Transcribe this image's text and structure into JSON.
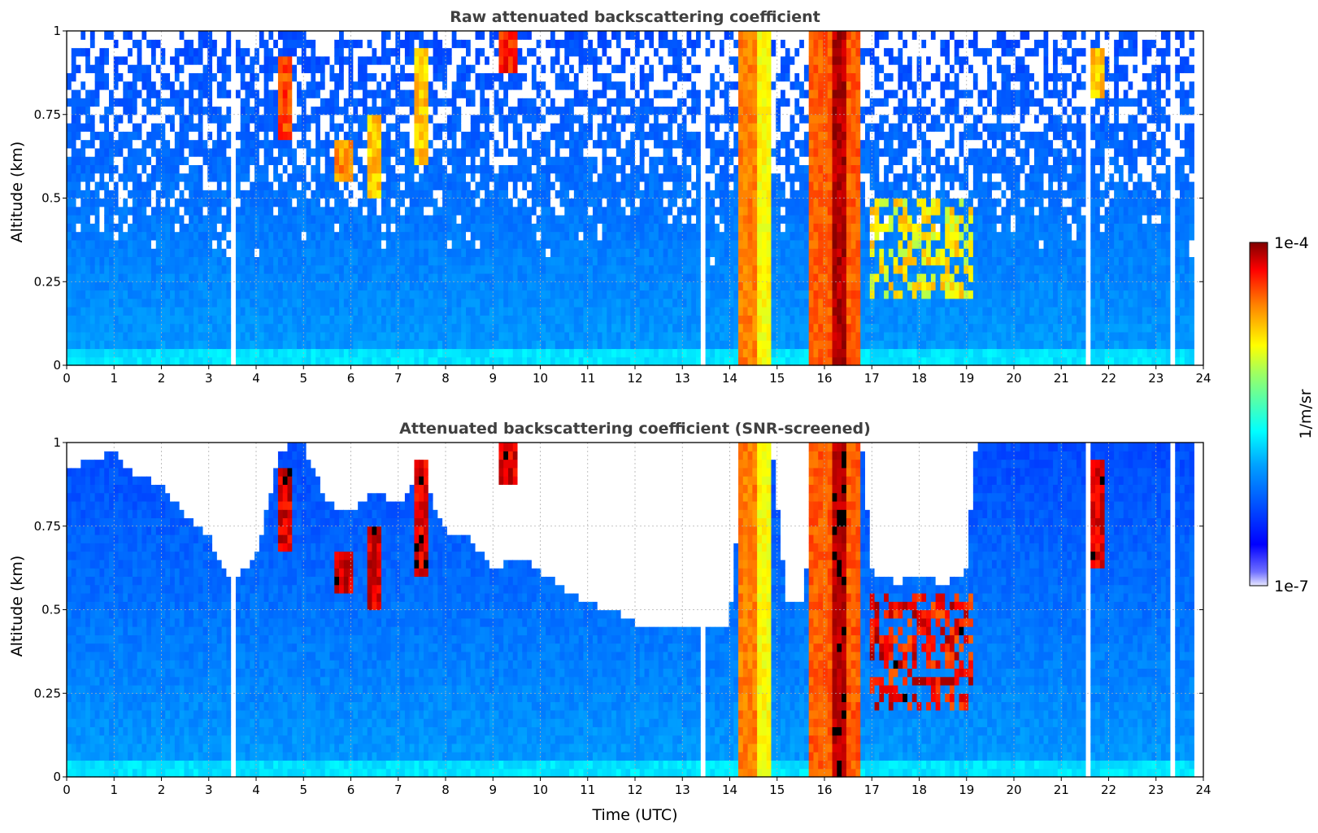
{
  "chart_data": [
    {
      "type": "heatmap",
      "title": "Raw attenuated backscattering coefficient",
      "xlabel": "",
      "ylabel": "Altitude (km)",
      "xlim": [
        0,
        24
      ],
      "ylim": [
        0,
        1
      ],
      "x_ticks": [
        "0",
        "1",
        "2",
        "3",
        "4",
        "5",
        "6",
        "7",
        "8",
        "9",
        "10",
        "11",
        "12",
        "13",
        "14",
        "15",
        "16",
        "17",
        "18",
        "19",
        "20",
        "21",
        "22",
        "23",
        "24"
      ],
      "y_ticks": [
        "0",
        "0.25",
        "0.5",
        "0.75",
        "1"
      ],
      "grid": true,
      "colorscale": "jet (log)",
      "data_end_time": 23.8,
      "screened": false,
      "features": [
        {
          "kind": "cloud_column",
          "t0": 14.15,
          "t1": 14.55,
          "top": 1.0,
          "level": 0.82
        },
        {
          "kind": "cloud_column",
          "t0": 14.6,
          "t1": 14.85,
          "top": 1.0,
          "level": 0.7
        },
        {
          "kind": "cloud_column",
          "t0": 15.65,
          "t1": 16.8,
          "top": 1.0,
          "level": 0.85
        },
        {
          "kind": "cloud_core",
          "t0": 16.2,
          "t1": 16.45,
          "top": 1.0,
          "level": 0.97
        },
        {
          "kind": "cloud_layer",
          "t0": 17.0,
          "t1": 19.1,
          "bottom": 0.2,
          "top": 0.5,
          "level": 0.78
        },
        {
          "kind": "streak",
          "t": 4.6,
          "bottom": 0.68,
          "top": 0.92,
          "level": 0.92
        },
        {
          "kind": "streak",
          "t": 5.85,
          "bottom": 0.55,
          "top": 0.68,
          "level": 0.85
        },
        {
          "kind": "streak",
          "t": 6.5,
          "bottom": 0.5,
          "top": 0.75,
          "level": 0.8
        },
        {
          "kind": "streak",
          "t": 7.5,
          "bottom": 0.6,
          "top": 0.95,
          "level": 0.8
        },
        {
          "kind": "streak",
          "t": 9.3,
          "bottom": 0.88,
          "top": 1.0,
          "level": 0.95
        },
        {
          "kind": "streak",
          "t": 21.7,
          "bottom": 0.8,
          "top": 0.95,
          "level": 0.8
        },
        {
          "kind": "dropout",
          "t": 3.5
        },
        {
          "kind": "dropout",
          "t": 13.45
        },
        {
          "kind": "dropout",
          "t": 21.55
        },
        {
          "kind": "dropout",
          "t": 23.4
        }
      ]
    },
    {
      "type": "heatmap",
      "title": "Attenuated backscattering coefficient (SNR-screened)",
      "xlabel": "Time (UTC)",
      "ylabel": "Altitude (km)",
      "xlim": [
        0,
        24
      ],
      "ylim": [
        0,
        1
      ],
      "x_ticks": [
        "0",
        "1",
        "2",
        "3",
        "4",
        "5",
        "6",
        "7",
        "8",
        "9",
        "10",
        "11",
        "12",
        "13",
        "14",
        "15",
        "16",
        "17",
        "18",
        "19",
        "20",
        "21",
        "22",
        "23",
        "24"
      ],
      "y_ticks": [
        "0",
        "0.25",
        "0.5",
        "0.75",
        "1"
      ],
      "grid": true,
      "colorscale": "jet (log)",
      "data_end_time": 23.8,
      "screened": true,
      "screen_height_profile": [
        [
          0,
          0.92
        ],
        [
          0.5,
          0.95
        ],
        [
          1,
          0.97
        ],
        [
          1.5,
          0.9
        ],
        [
          2,
          0.88
        ],
        [
          2.5,
          0.78
        ],
        [
          3,
          0.72
        ],
        [
          3.5,
          0.58
        ],
        [
          4,
          0.66
        ],
        [
          4.5,
          0.98
        ],
        [
          5,
          1.0
        ],
        [
          5.5,
          0.82
        ],
        [
          6,
          0.8
        ],
        [
          6.5,
          0.85
        ],
        [
          7,
          0.82
        ],
        [
          7.5,
          0.9
        ],
        [
          8,
          0.74
        ],
        [
          8.5,
          0.72
        ],
        [
          9,
          0.62
        ],
        [
          9.5,
          0.66
        ],
        [
          10,
          0.62
        ],
        [
          10.5,
          0.56
        ],
        [
          11,
          0.52
        ],
        [
          11.5,
          0.5
        ],
        [
          12,
          0.46
        ],
        [
          12.5,
          0.45
        ],
        [
          13,
          0.44
        ],
        [
          13.5,
          0.44
        ],
        [
          14,
          0.46
        ],
        [
          14.3,
          1.0
        ],
        [
          14.9,
          1.0
        ],
        [
          15.2,
          0.52
        ],
        [
          15.6,
          0.54
        ],
        [
          15.7,
          1.0
        ],
        [
          16.8,
          1.0
        ],
        [
          17,
          0.62
        ],
        [
          17.5,
          0.58
        ],
        [
          18,
          0.6
        ],
        [
          18.5,
          0.58
        ],
        [
          19,
          0.62
        ],
        [
          19.2,
          1.0
        ],
        [
          23.8,
          1.0
        ]
      ],
      "features": [
        {
          "kind": "cloud_column",
          "t0": 14.15,
          "t1": 14.55,
          "top": 1.0,
          "level": 0.82
        },
        {
          "kind": "cloud_column",
          "t0": 14.6,
          "t1": 14.85,
          "top": 1.0,
          "level": 0.7
        },
        {
          "kind": "cloud_column",
          "t0": 15.65,
          "t1": 16.8,
          "top": 1.0,
          "level": 0.85
        },
        {
          "kind": "cloud_core",
          "t0": 16.2,
          "t1": 16.45,
          "top": 1.0,
          "level": 0.97
        },
        {
          "kind": "cloud_layer",
          "t0": 17.0,
          "t1": 19.1,
          "bottom": 0.2,
          "top": 0.55,
          "level": 0.99
        },
        {
          "kind": "streak",
          "t": 4.6,
          "bottom": 0.68,
          "top": 0.92,
          "level": 0.99
        },
        {
          "kind": "streak",
          "t": 5.85,
          "bottom": 0.55,
          "top": 0.68,
          "level": 0.99
        },
        {
          "kind": "streak",
          "t": 6.5,
          "bottom": 0.5,
          "top": 0.75,
          "level": 0.99
        },
        {
          "kind": "streak",
          "t": 7.5,
          "bottom": 0.6,
          "top": 0.95,
          "level": 0.99
        },
        {
          "kind": "streak",
          "t": 9.3,
          "bottom": 0.88,
          "top": 1.0,
          "level": 0.99
        },
        {
          "kind": "streak",
          "t": 21.7,
          "bottom": 0.62,
          "top": 0.95,
          "level": 0.99
        },
        {
          "kind": "dropout",
          "t": 3.5
        },
        {
          "kind": "dropout",
          "t": 13.45
        },
        {
          "kind": "dropout",
          "t": 21.55
        },
        {
          "kind": "dropout",
          "t": 23.4
        }
      ]
    }
  ],
  "colorbar": {
    "label": "1/m/sr",
    "max_label": "1e-4",
    "min_label": "1e-7",
    "range": [
      1e-07,
      0.0001
    ],
    "scale": "log"
  }
}
